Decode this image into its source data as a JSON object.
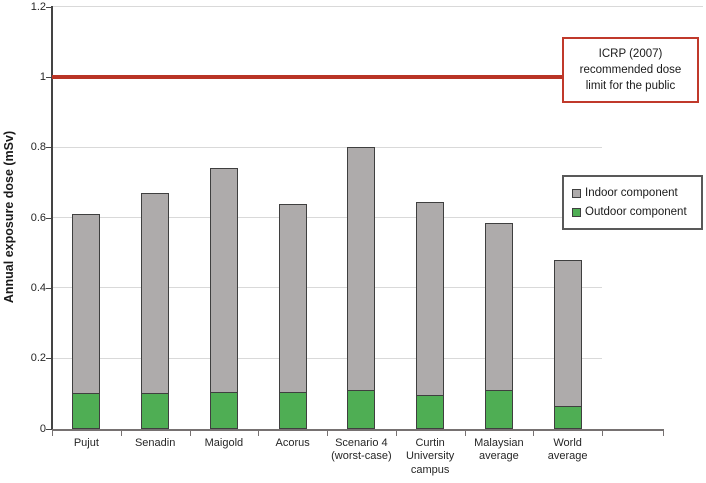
{
  "chart_data": {
    "type": "bar",
    "stacked": true,
    "title": "",
    "ylabel": "Annual exposure dose (mSv)",
    "xlabel": "",
    "ylim": [
      0,
      1.2
    ],
    "ytick_values": [
      0,
      0.2,
      0.4,
      0.6,
      0.8,
      1,
      1.2
    ],
    "yticks": [
      "0",
      "0.2",
      "0.4",
      "0.6",
      "0.8",
      "1",
      "1.2"
    ],
    "grid": "horizontal",
    "categories": [
      "Pujut",
      "Senadin",
      "Maigold",
      "Acorus",
      "Scenario 4 (worst-case)",
      "Curtin University campus",
      "Malaysian average",
      "World average"
    ],
    "category_label_lines": [
      [
        "Pujut"
      ],
      [
        "Senadin"
      ],
      [
        "Maigold"
      ],
      [
        "Acorus"
      ],
      [
        "Scenario 4",
        "(worst-case)"
      ],
      [
        "Curtin",
        "University",
        "campus"
      ],
      [
        "Malaysian",
        "average"
      ],
      [
        "World",
        "average"
      ]
    ],
    "series": [
      {
        "name": "Outdoor component",
        "color": "#4fae54",
        "values": [
          0.1,
          0.1,
          0.105,
          0.105,
          0.11,
          0.095,
          0.11,
          0.065
        ]
      },
      {
        "name": "Indoor component",
        "color": "#aeabab",
        "values": [
          0.51,
          0.57,
          0.635,
          0.535,
          0.69,
          0.55,
          0.475,
          0.415
        ]
      }
    ],
    "stack_totals": [
      0.61,
      0.67,
      0.74,
      0.64,
      0.8,
      0.645,
      0.585,
      0.48
    ],
    "legend": [
      {
        "label": "Indoor component",
        "color": "#aeabab"
      },
      {
        "label": "Outdoor component",
        "color": "#4fae54"
      }
    ],
    "legend_position": "right",
    "reference_line": {
      "value": 1,
      "color": "#b93425",
      "label": "ICRP (2007) recommended dose limit for the public",
      "label_lines": [
        "ICRP (2007)",
        "recommended dose",
        "limit for the public"
      ],
      "box_border_color": "#c0392b"
    },
    "colors": {
      "grid": "#d9d9d9",
      "axis": "#595959",
      "bar_border": "#3f3f3f",
      "background": "#ffffff"
    }
  }
}
